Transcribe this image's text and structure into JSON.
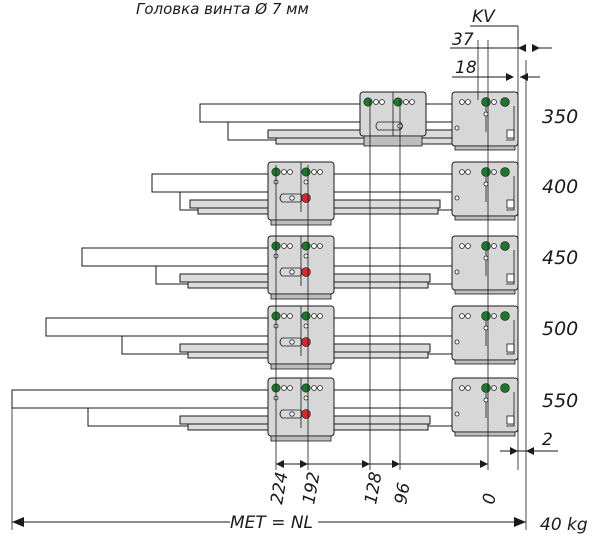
{
  "header_text": "Головка винта Ø 7 мм",
  "dimensions_top": {
    "kv": "KV",
    "d37": "37",
    "d18": "18"
  },
  "lengths": [
    "350",
    "400",
    "450",
    "500",
    "550"
  ],
  "bottom_dimensions": [
    "224",
    "192",
    "128",
    "96",
    "0"
  ],
  "right_offset": "2",
  "total_label": "MET = NL",
  "load_label": "40 kg",
  "colors": {
    "screw_green": "#1a7a2a",
    "screw_red": "#e0262a",
    "metal": "#d7d7d7"
  }
}
